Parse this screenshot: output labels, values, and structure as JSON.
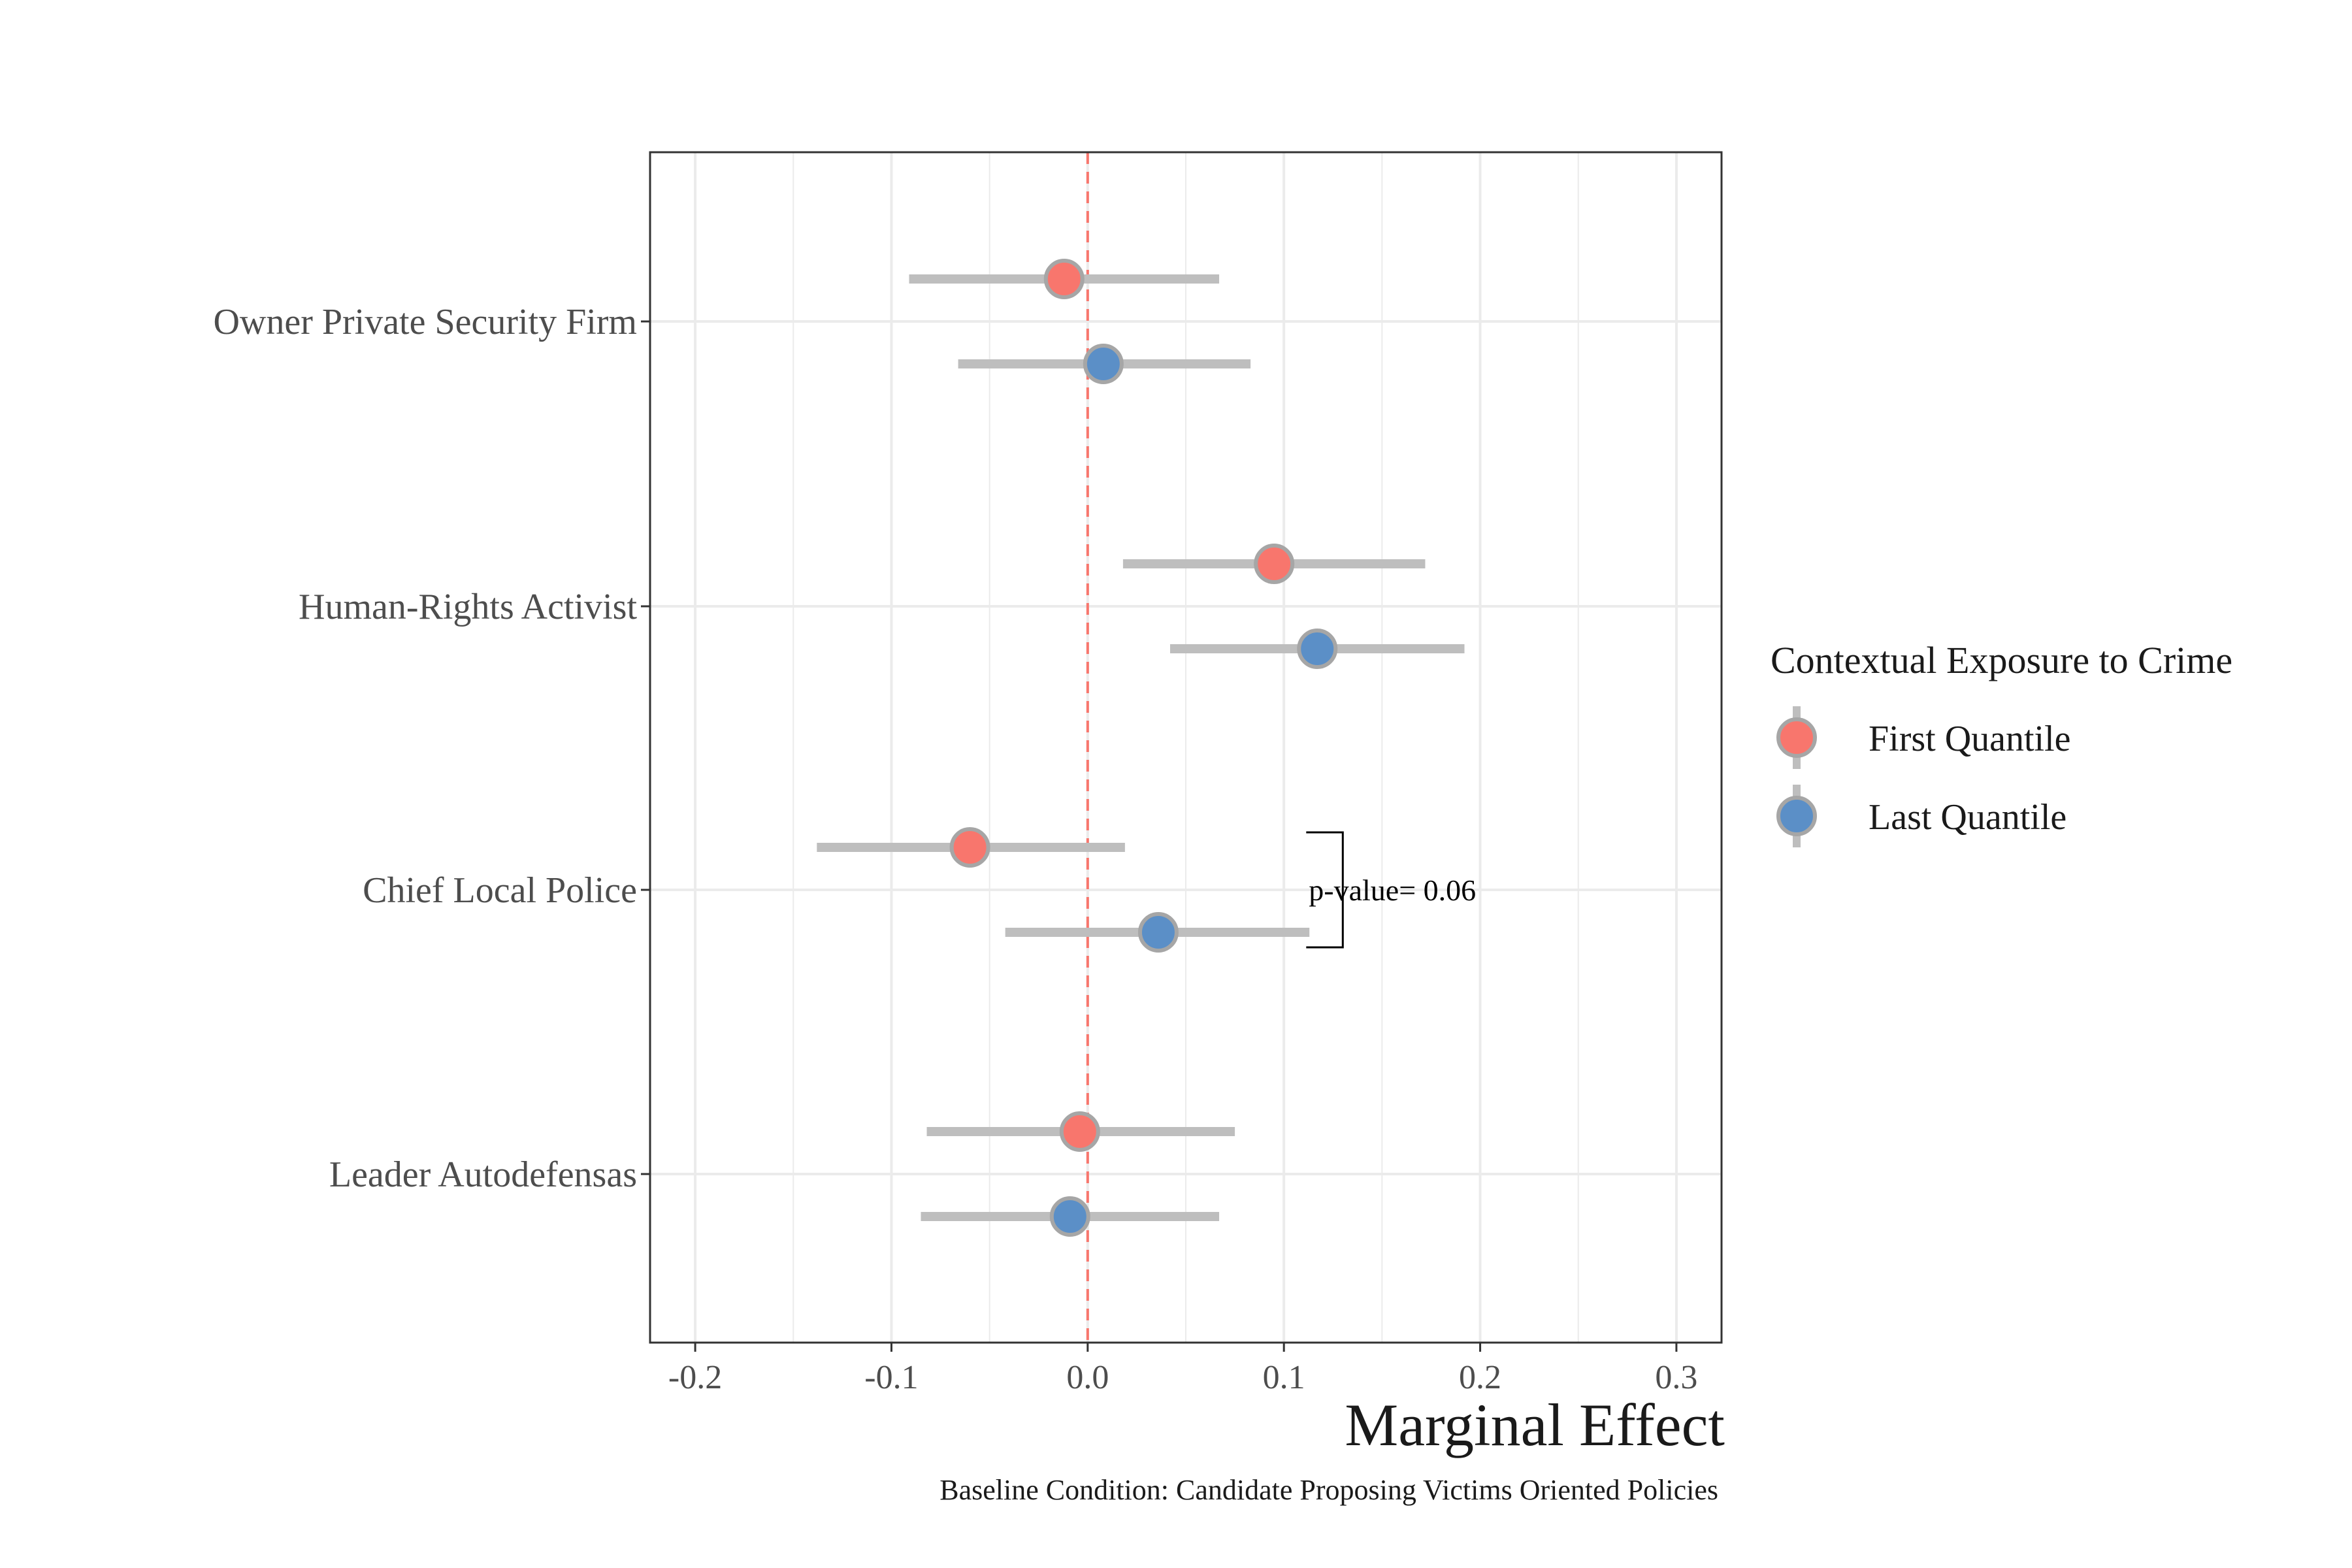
{
  "chart_data": {
    "type": "scatter",
    "subtype": "coefficient-plot",
    "xlabel": "Marginal Effect",
    "caption": "Baseline Condition: Candidate Proposing Victims Oriented Policies",
    "xlim": [
      -0.223,
      0.323
    ],
    "x_ticks": [
      -0.2,
      -0.1,
      0.0,
      0.1,
      0.2,
      0.3
    ],
    "x_tick_labels": [
      "-0.2",
      "-0.1",
      "0.0",
      "0.1",
      "0.2",
      "0.3"
    ],
    "reference_line": {
      "x": 0.0,
      "style": "dashed",
      "color": "#f8766d"
    },
    "grid": true,
    "categories": [
      "Owner Private Security Firm",
      "Human-Rights Activist",
      "Chief Local Police",
      "Leader Autodefensas"
    ],
    "legend": {
      "title": "Contextual Exposure to Crime",
      "position": "right",
      "items": [
        "First Quantile",
        "Last Quantile"
      ]
    },
    "series": [
      {
        "name": "First Quantile",
        "color": "#f8766d",
        "points": [
          {
            "category": "Owner Private Security Firm",
            "estimate": -0.012,
            "lower": -0.091,
            "upper": 0.067
          },
          {
            "category": "Human-Rights Activist",
            "estimate": 0.095,
            "lower": 0.018,
            "upper": 0.172
          },
          {
            "category": "Chief Local Police",
            "estimate": -0.06,
            "lower": -0.138,
            "upper": 0.019
          },
          {
            "category": "Leader Autodefensas",
            "estimate": -0.004,
            "lower": -0.082,
            "upper": 0.075
          }
        ]
      },
      {
        "name": "Last Quantile",
        "color": "#5b8fc7",
        "points": [
          {
            "category": "Owner Private Security Firm",
            "estimate": 0.008,
            "lower": -0.066,
            "upper": 0.083
          },
          {
            "category": "Human-Rights Activist",
            "estimate": 0.117,
            "lower": 0.042,
            "upper": 0.192
          },
          {
            "category": "Chief Local Police",
            "estimate": 0.036,
            "lower": -0.042,
            "upper": 0.113
          },
          {
            "category": "Leader Autodefensas",
            "estimate": -0.009,
            "lower": -0.085,
            "upper": 0.067
          }
        ]
      }
    ],
    "annotation": {
      "text": "p-value= 0.06",
      "category": "Chief Local Police",
      "bracket_x": 0.13
    },
    "colors": {
      "error_bar": "#bebebe",
      "point_outline": "#a6a6a6",
      "grid": "#ebebeb",
      "panel_border": "#333333"
    }
  }
}
